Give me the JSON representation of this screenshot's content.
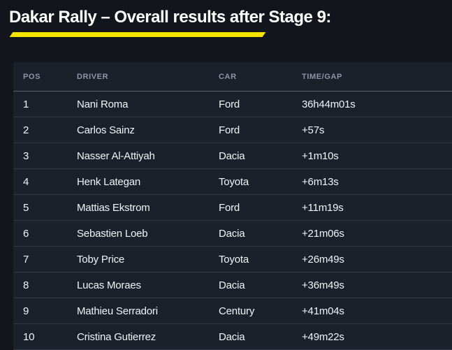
{
  "page": {
    "title": "Dakar Rally – Overall results after Stage 9:",
    "accent_color": "#f5e300",
    "background_color": "#12151c",
    "panel_color": "#1b202b"
  },
  "table": {
    "columns": [
      "POS",
      "DRIVER",
      "CAR",
      "TIME/GAP"
    ],
    "rows": [
      {
        "pos": "1",
        "driver": "Nani Roma",
        "car": "Ford",
        "time_gap": "36h44m01s"
      },
      {
        "pos": "2",
        "driver": "Carlos Sainz",
        "car": "Ford",
        "time_gap": "+57s"
      },
      {
        "pos": "3",
        "driver": "Nasser Al-Attiyah",
        "car": "Dacia",
        "time_gap": "+1m10s"
      },
      {
        "pos": "4",
        "driver": "Henk Lategan",
        "car": "Toyota",
        "time_gap": "+6m13s"
      },
      {
        "pos": "5",
        "driver": "Mattias Ekstrom",
        "car": "Ford",
        "time_gap": "+11m19s"
      },
      {
        "pos": "6",
        "driver": "Sebastien Loeb",
        "car": "Dacia",
        "time_gap": "+21m06s"
      },
      {
        "pos": "7",
        "driver": "Toby Price",
        "car": "Toyota",
        "time_gap": "+26m49s"
      },
      {
        "pos": "8",
        "driver": "Lucas Moraes",
        "car": "Dacia",
        "time_gap": "+36m49s"
      },
      {
        "pos": "9",
        "driver": "Mathieu Serradori",
        "car": "Century",
        "time_gap": "+41m04s"
      },
      {
        "pos": "10",
        "driver": "Cristina Gutierrez",
        "car": "Dacia",
        "time_gap": "+49m22s"
      }
    ]
  }
}
